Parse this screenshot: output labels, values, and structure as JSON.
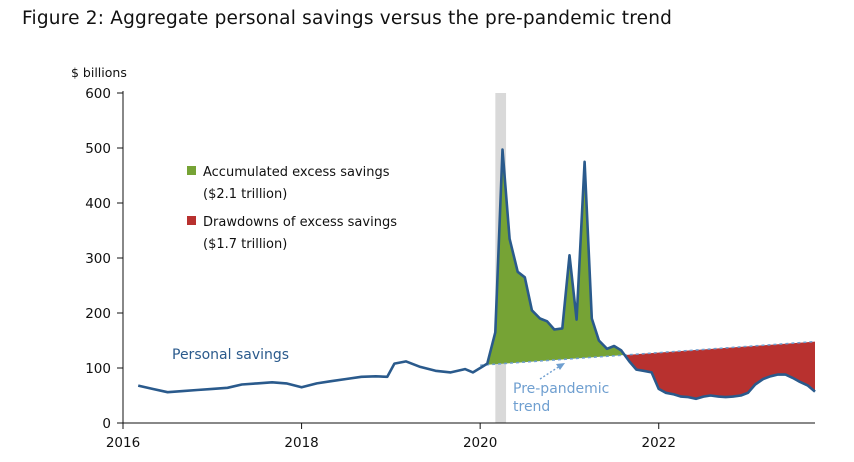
{
  "figure": {
    "title": "Figure 2: Aggregate personal savings versus the pre-pandemic trend"
  },
  "chart_data": {
    "type": "area",
    "unit_label": "$ billions",
    "xlim": [
      2016.0,
      2023.75
    ],
    "ylim": [
      0,
      600
    ],
    "x_ticks": [
      2016,
      2018,
      2020,
      2022
    ],
    "x_tick_labels": [
      "2016",
      "2018",
      "2020",
      "2022"
    ],
    "y_ticks": [
      0,
      100,
      200,
      300,
      400,
      500,
      600
    ],
    "y_tick_labels": [
      "0",
      "100",
      "200",
      "300",
      "400",
      "500",
      "600"
    ],
    "shaded_band": {
      "x_start": 2020.17,
      "x_end": 2020.29
    },
    "grid": false,
    "legend": {
      "placement": "upper-left",
      "items": [
        {
          "label_line1": "Accumulated excess savings",
          "label_line2": "($2.1 trillion)",
          "color": "#76a335"
        },
        {
          "label_line1": "Drawdowns of excess savings",
          "label_line2": "($1.7 trillion)",
          "color": "#b8312f"
        }
      ]
    },
    "annotations": {
      "personal_savings": "Personal savings",
      "pre_pandemic_line1": "Pre-pandemic",
      "pre_pandemic_line2": "trend"
    },
    "colors": {
      "savings_line": "#2a5a8c",
      "trend_line": "#6f9fd0",
      "band": "#d9d9d9",
      "annotation": "#2a5a8c"
    },
    "trend": {
      "x": [
        2020.0,
        2023.75
      ],
      "y": [
        105,
        148
      ]
    },
    "series": [
      {
        "name": "Personal savings",
        "x": [
          2016.17,
          2016.33,
          2016.5,
          2016.67,
          2016.83,
          2017.0,
          2017.17,
          2017.33,
          2017.5,
          2017.67,
          2017.83,
          2018.0,
          2018.17,
          2018.33,
          2018.5,
          2018.67,
          2018.83,
          2018.96,
          2019.04,
          2019.17,
          2019.33,
          2019.5,
          2019.67,
          2019.83,
          2019.92,
          2020.0,
          2020.08,
          2020.17,
          2020.25,
          2020.33,
          2020.42,
          2020.5,
          2020.58,
          2020.67,
          2020.75,
          2020.83,
          2020.92,
          2021.0,
          2021.08,
          2021.17,
          2021.25,
          2021.33,
          2021.42,
          2021.5,
          2021.58,
          2021.67,
          2021.75,
          2021.83,
          2021.92,
          2022.0,
          2022.08,
          2022.17,
          2022.25,
          2022.33,
          2022.42,
          2022.5,
          2022.58,
          2022.67,
          2022.75,
          2022.83,
          2022.92,
          2023.0,
          2023.08,
          2023.17,
          2023.25,
          2023.33,
          2023.42,
          2023.5,
          2023.58,
          2023.67,
          2023.75
        ],
        "y": [
          68,
          62,
          56,
          58,
          60,
          62,
          64,
          70,
          72,
          74,
          72,
          65,
          72,
          76,
          80,
          84,
          85,
          84,
          108,
          112,
          102,
          95,
          92,
          98,
          92,
          100,
          108,
          165,
          497,
          335,
          275,
          265,
          205,
          190,
          185,
          170,
          172,
          305,
          188,
          475,
          190,
          150,
          135,
          140,
          132,
          112,
          97,
          95,
          92,
          62,
          55,
          52,
          48,
          47,
          44,
          48,
          50,
          48,
          47,
          48,
          50,
          55,
          70,
          80,
          85,
          88,
          88,
          82,
          75,
          68,
          57
        ]
      }
    ]
  }
}
